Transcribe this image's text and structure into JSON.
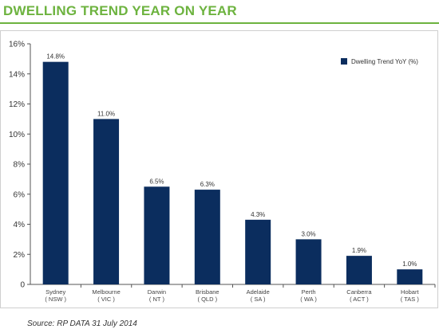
{
  "header": {
    "title": "DWELLING TREND YEAR ON YEAR"
  },
  "footer": {
    "source": "Source: RP DATA 31 July 2014"
  },
  "colors": {
    "title": "#6db33f",
    "bar": "#0b2d5e"
  },
  "chart_data": {
    "type": "bar",
    "categories": [
      [
        "Sydney",
        "( NSW )"
      ],
      [
        "Melbourne",
        "( VIC )"
      ],
      [
        "Darwin",
        "( NT )"
      ],
      [
        "Brisbane",
        "( QLD )"
      ],
      [
        "Adelaide",
        "( SA )"
      ],
      [
        "Perth",
        "( WA )"
      ],
      [
        "Canberra",
        "( ACT )"
      ],
      [
        "Hobart",
        "( TAS )"
      ]
    ],
    "series": [
      {
        "name": "Dwelling Trend YoY (%)",
        "values": [
          14.8,
          11.0,
          6.5,
          6.3,
          4.3,
          3.0,
          1.9,
          1.0
        ],
        "labels": [
          "14.8%",
          "11.0%",
          "6.5%",
          "6.3%",
          "4.3%",
          "3.0%",
          "1.9%",
          "1.0%"
        ]
      }
    ],
    "ylim": [
      0,
      16
    ],
    "yticks": [
      0,
      2,
      4,
      6,
      8,
      10,
      12,
      14,
      16
    ],
    "ytick_labels": [
      "0",
      "2%",
      "4%",
      "6%",
      "8%",
      "10%",
      "12%",
      "14%",
      "16%"
    ],
    "legend": "top-right",
    "grid": false
  }
}
